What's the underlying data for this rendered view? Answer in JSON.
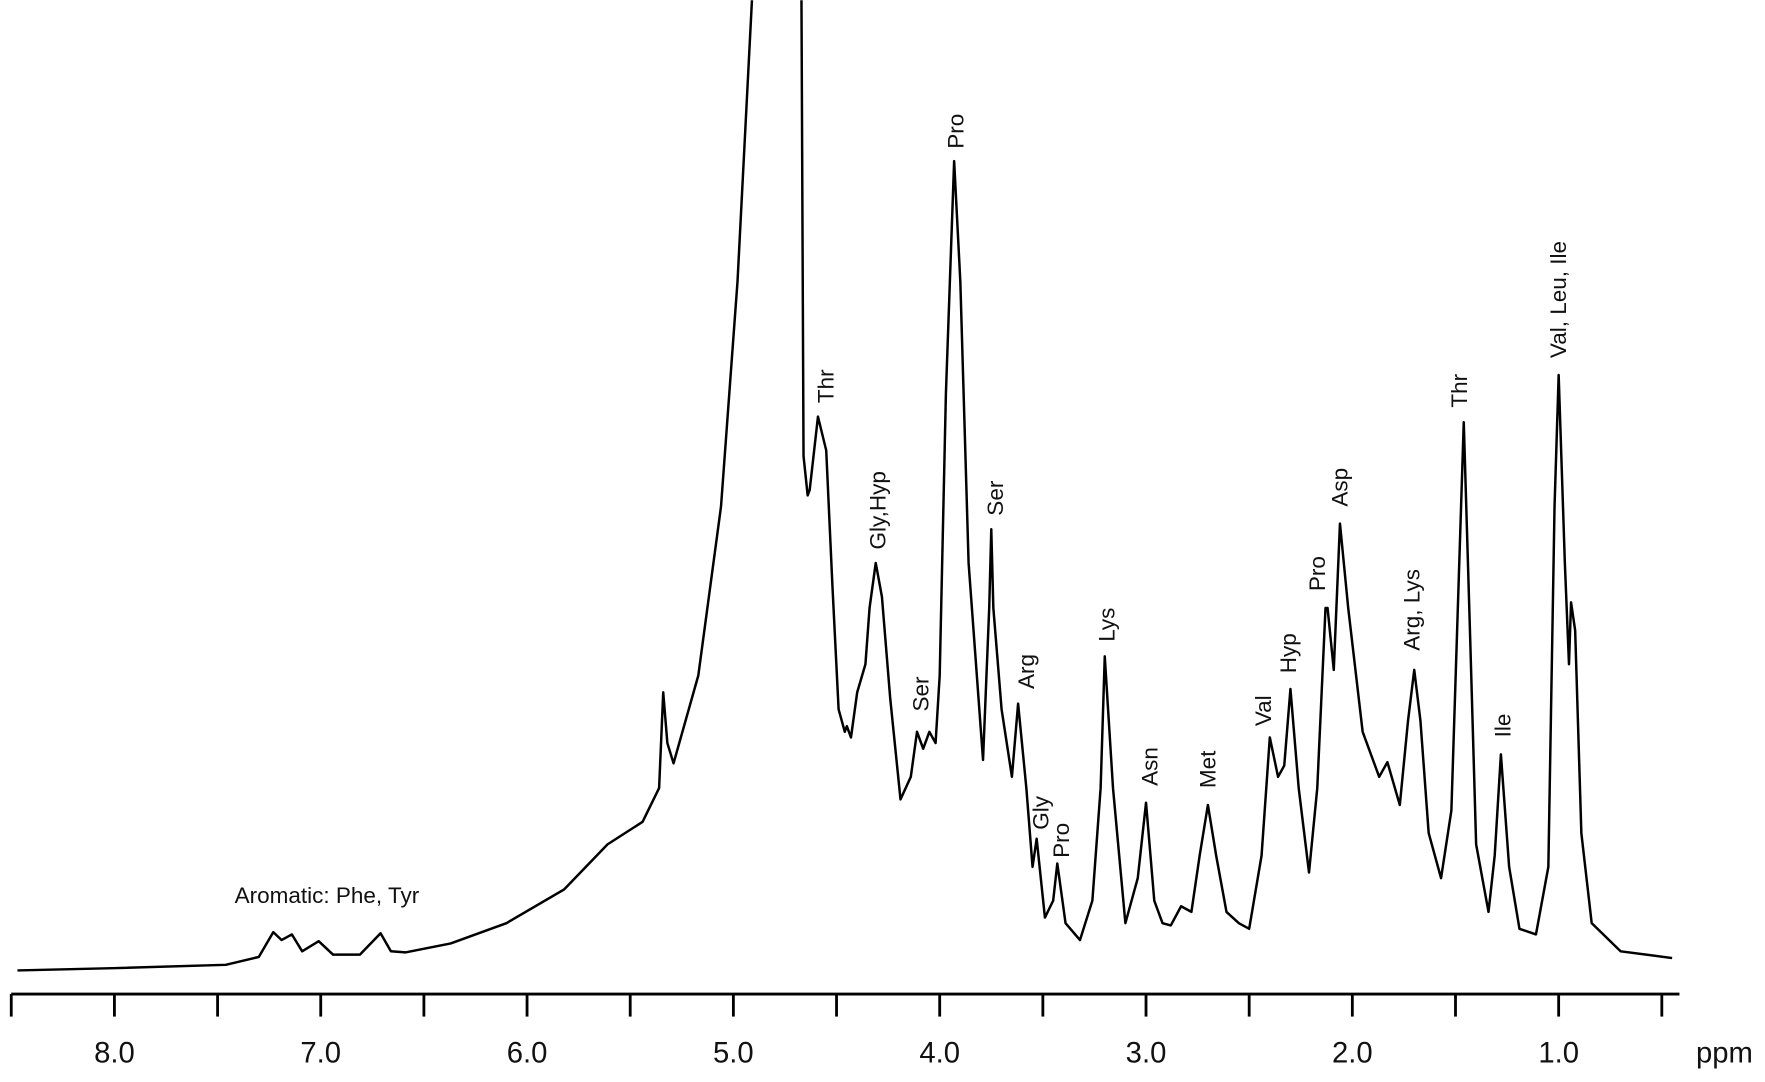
{
  "chart_data": {
    "type": "line",
    "color": "#000000",
    "xlabel": "ppm",
    "xlim": [
      8.5,
      0.42
    ],
    "ylim": [
      0,
      86.2
    ],
    "xticks": [
      {
        "value": 8,
        "label": "8.0"
      },
      {
        "value": 7,
        "label": "7.0"
      },
      {
        "value": 6,
        "label": "6.0"
      },
      {
        "value": 5,
        "label": "5.0"
      },
      {
        "value": 4,
        "label": "4.0"
      },
      {
        "value": 3,
        "label": "3.0"
      },
      {
        "value": 2,
        "label": "2.0"
      },
      {
        "value": 1,
        "label": "1.0"
      }
    ],
    "xminor_ticks": [
      8.5,
      7.5,
      6.5,
      5.5,
      4.5,
      3.5,
      2.5,
      1.5,
      0.5
    ],
    "x": [
      8.47,
      8.01,
      7.46,
      7.3,
      7.23,
      7.19,
      7.14,
      7.09,
      7.01,
      6.94,
      6.81,
      6.71,
      6.66,
      6.59,
      6.37,
      6.1,
      5.82,
      5.61,
      5.44,
      5.36,
      5.34,
      5.32,
      5.29,
      5.17,
      5.06,
      4.98,
      4.91,
      4.79,
      4.67,
      4.66,
      4.64,
      4.63,
      4.59,
      4.55,
      4.52,
      4.49,
      4.46,
      4.45,
      4.43,
      4.4,
      4.36,
      4.34,
      4.31,
      4.28,
      4.24,
      4.19,
      4.14,
      4.11,
      4.08,
      4.05,
      4.02,
      4.0,
      3.97,
      3.93,
      3.9,
      3.86,
      3.82,
      3.79,
      3.76,
      3.75,
      3.74,
      3.7,
      3.65,
      3.62,
      3.58,
      3.55,
      3.53,
      3.49,
      3.45,
      3.43,
      3.39,
      3.32,
      3.26,
      3.22,
      3.2,
      3.16,
      3.1,
      3.04,
      3.0,
      2.96,
      2.92,
      2.88,
      2.83,
      2.78,
      2.74,
      2.7,
      2.66,
      2.61,
      2.55,
      2.5,
      2.44,
      2.4,
      2.36,
      2.33,
      2.3,
      2.26,
      2.21,
      2.17,
      2.13,
      2.12,
      2.09,
      2.06,
      2.02,
      1.95,
      1.87,
      1.83,
      1.77,
      1.73,
      1.7,
      1.67,
      1.63,
      1.57,
      1.52,
      1.46,
      1.43,
      1.4,
      1.34,
      1.31,
      1.28,
      1.24,
      1.19,
      1.11,
      1.05,
      1.02,
      1.0,
      0.97,
      0.95,
      0.94,
      0.92,
      0.89,
      0.84,
      0.7,
      0.45
    ],
    "values": [
      0,
      0.2,
      0.5,
      1.2,
      3.4,
      2.7,
      3.2,
      1.7,
      2.6,
      1.4,
      1.4,
      3.3,
      1.7,
      1.6,
      2.4,
      4.2,
      7.2,
      11.2,
      13.2,
      16.2,
      24.7,
      20.2,
      18.4,
      26.2,
      41.2,
      61.2,
      86.2,
      null,
      86.2,
      45.7,
      42.2,
      42.7,
      49.2,
      46.2,
      34.2,
      23.2,
      21.2,
      21.7,
      20.7,
      24.7,
      27.2,
      32.2,
      36.2,
      33.2,
      24.2,
      15.2,
      17.2,
      21.2,
      19.7,
      21.2,
      20.2,
      26.2,
      51.2,
      71.9,
      61.2,
      36.2,
      26.2,
      18.7,
      32.2,
      39.2,
      32.2,
      23.2,
      17.2,
      23.7,
      16.2,
      9.2,
      11.7,
      4.7,
      6.2,
      9.5,
      4.2,
      2.7,
      6.2,
      16.2,
      27.9,
      16.2,
      4.2,
      8.2,
      14.9,
      6.2,
      4.2,
      4.0,
      5.7,
      5.2,
      10.2,
      14.7,
      10.2,
      5.2,
      4.2,
      3.7,
      10.2,
      20.7,
      17.2,
      18.2,
      25.0,
      16.2,
      8.7,
      16.2,
      32.2,
      32.2,
      26.7,
      39.7,
      32.2,
      21.2,
      17.2,
      18.5,
      14.7,
      22.2,
      26.7,
      22.2,
      12.2,
      8.2,
      14.2,
      48.7,
      30.2,
      11.2,
      5.2,
      10.2,
      19.2,
      9.2,
      3.7,
      3.2,
      9.2,
      41.2,
      52.9,
      36.2,
      27.2,
      32.7,
      30.2,
      12.2,
      4.2,
      1.7,
      1.1
    ],
    "annotations": [
      {
        "text": "Aromatic: Phe, Tyr",
        "x": 6.97,
        "y": 6.5,
        "rotate": false
      },
      {
        "text": "Thr",
        "x": 4.55,
        "y": 50.4,
        "rotate": true
      },
      {
        "text": "Gly,Hyp",
        "x": 4.3,
        "y": 37.4,
        "rotate": true
      },
      {
        "text": "Ser",
        "x": 4.09,
        "y": 23.0,
        "rotate": true
      },
      {
        "text": "Pro",
        "x": 3.92,
        "y": 73.0,
        "rotate": true
      },
      {
        "text": "Ser",
        "x": 3.73,
        "y": 40.4,
        "rotate": true
      },
      {
        "text": "Arg",
        "x": 3.58,
        "y": 25.0,
        "rotate": true
      },
      {
        "text": "Gly",
        "x": 3.51,
        "y": 12.5,
        "rotate": true
      },
      {
        "text": "Pro",
        "x": 3.41,
        "y": 10.0,
        "rotate": true
      },
      {
        "text": "Lys",
        "x": 3.19,
        "y": 29.2,
        "rotate": true
      },
      {
        "text": "Asn",
        "x": 2.98,
        "y": 16.4,
        "rotate": true
      },
      {
        "text": "Met",
        "x": 2.7,
        "y": 16.2,
        "rotate": true
      },
      {
        "text": "Val",
        "x": 2.43,
        "y": 21.7,
        "rotate": true
      },
      {
        "text": "Hyp",
        "x": 2.31,
        "y": 26.4,
        "rotate": true
      },
      {
        "text": "Pro",
        "x": 2.17,
        "y": 33.7,
        "rotate": true
      },
      {
        "text": "Asp",
        "x": 2.06,
        "y": 41.2,
        "rotate": true
      },
      {
        "text": "Arg, Lys",
        "x": 1.71,
        "y": 28.4,
        "rotate": true
      },
      {
        "text": "Thr",
        "x": 1.48,
        "y": 50.0,
        "rotate": true
      },
      {
        "text": "Ile",
        "x": 1.27,
        "y": 20.7,
        "rotate": true
      },
      {
        "text": "Val, Leu, Ile",
        "x": 1.0,
        "y": 54.4,
        "rotate": true
      }
    ]
  }
}
